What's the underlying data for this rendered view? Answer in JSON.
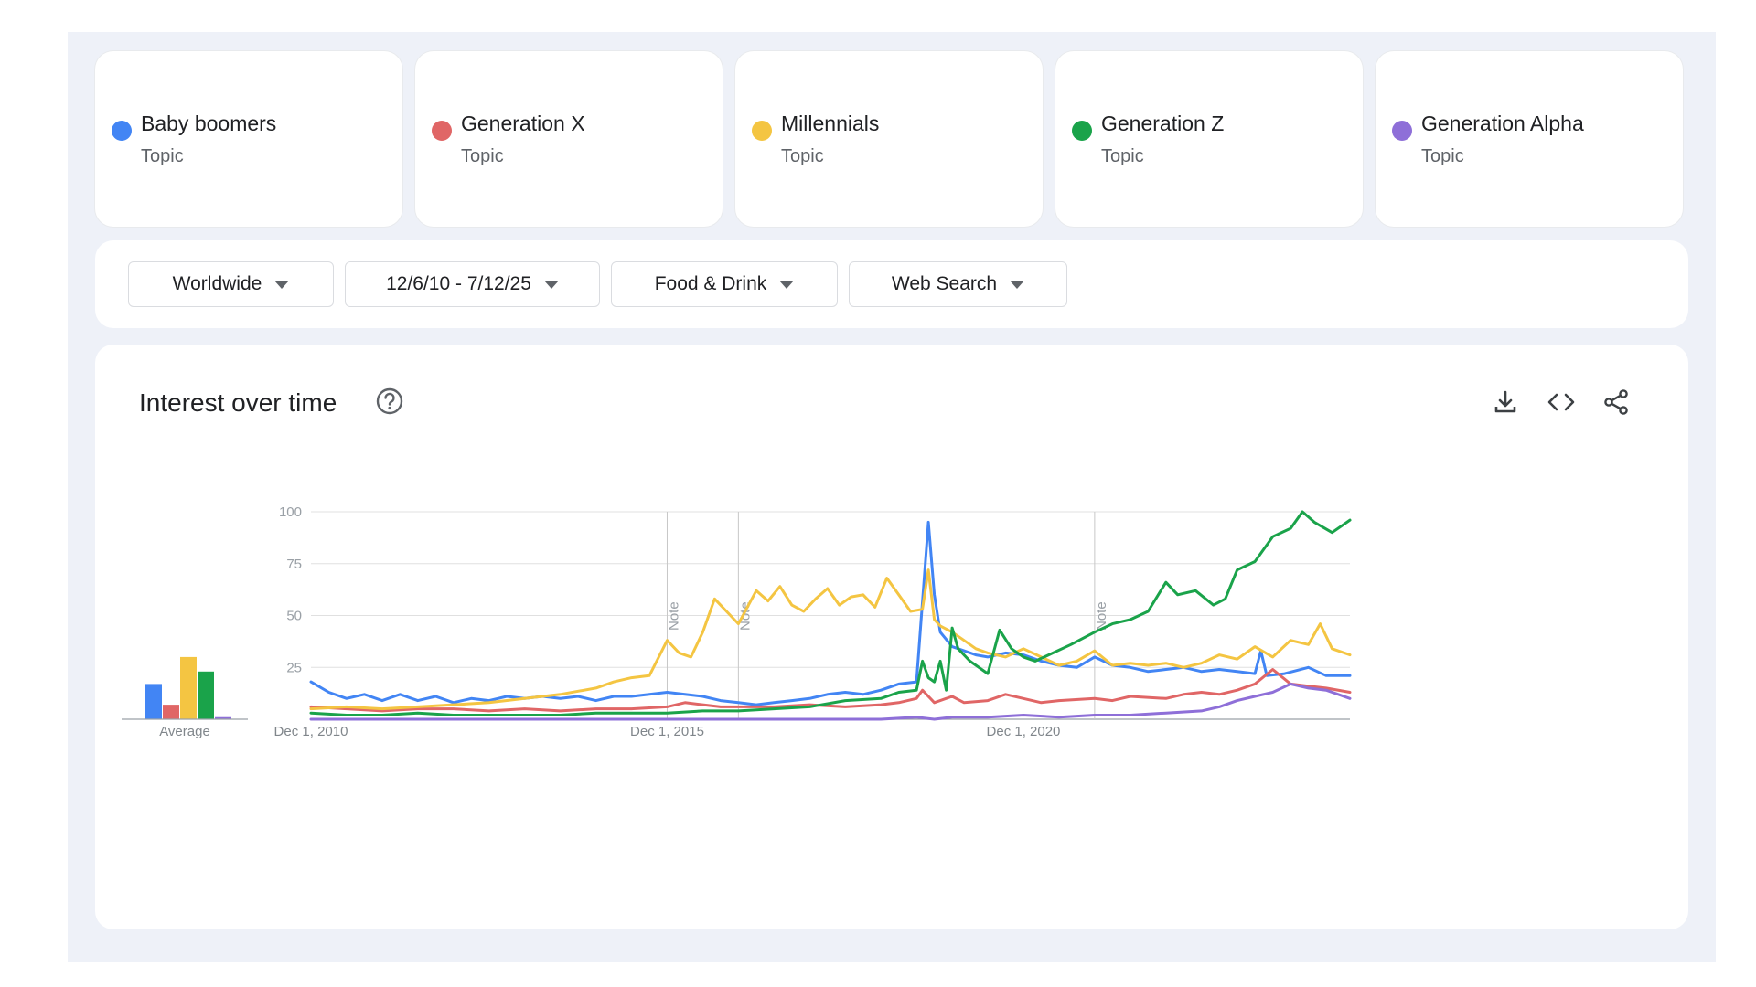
{
  "terms": [
    {
      "name": "Baby boomers",
      "type": "Topic",
      "color": "#4285f4"
    },
    {
      "name": "Generation X",
      "type": "Topic",
      "color": "#e06666"
    },
    {
      "name": "Millennials",
      "type": "Topic",
      "color": "#f4c542"
    },
    {
      "name": "Generation Z",
      "type": "Topic",
      "color": "#1aa34a"
    },
    {
      "name": "Generation Alpha",
      "type": "Topic",
      "color": "#8e6fd8"
    }
  ],
  "filters": {
    "region": "Worldwide",
    "date_range": "12/6/10 - 7/12/25",
    "category": "Food & Drink",
    "search_type": "Web Search"
  },
  "chart_header": {
    "title": "Interest over time",
    "icons": [
      "help-icon",
      "download-icon",
      "embed-icon",
      "share-icon"
    ]
  },
  "chart_data": {
    "type": "line",
    "x_ticks": [
      "Dec 1, 2010",
      "Dec 1, 2015",
      "Dec 1, 2020"
    ],
    "y_ticks": [
      100,
      75,
      50,
      25
    ],
    "ylim": [
      0,
      100
    ],
    "xlim": [
      "2010-12",
      "2025-07"
    ],
    "grid": true,
    "notes": [
      {
        "date": "2015-12",
        "label": "Note"
      },
      {
        "date": "2016-12",
        "label": "Note"
      },
      {
        "date": "2021-12",
        "label": "Note"
      }
    ],
    "average_label": "Average",
    "averages": [
      17,
      7,
      30,
      23,
      1
    ],
    "series": [
      {
        "name": "Baby boomers",
        "color": "#4285f4",
        "points": [
          [
            "2010-12",
            18
          ],
          [
            "2011-03",
            13
          ],
          [
            "2011-06",
            10
          ],
          [
            "2011-09",
            12
          ],
          [
            "2011-12",
            9
          ],
          [
            "2012-03",
            12
          ],
          [
            "2012-06",
            9
          ],
          [
            "2012-09",
            11
          ],
          [
            "2012-12",
            8
          ],
          [
            "2013-03",
            10
          ],
          [
            "2013-06",
            9
          ],
          [
            "2013-09",
            11
          ],
          [
            "2013-12",
            10
          ],
          [
            "2014-03",
            11
          ],
          [
            "2014-06",
            10
          ],
          [
            "2014-09",
            11
          ],
          [
            "2014-12",
            9
          ],
          [
            "2015-03",
            11
          ],
          [
            "2015-06",
            11
          ],
          [
            "2015-09",
            12
          ],
          [
            "2015-12",
            13
          ],
          [
            "2016-03",
            12
          ],
          [
            "2016-06",
            11
          ],
          [
            "2016-09",
            9
          ],
          [
            "2016-12",
            8
          ],
          [
            "2017-03",
            7
          ],
          [
            "2017-06",
            8
          ],
          [
            "2017-09",
            9
          ],
          [
            "2017-12",
            10
          ],
          [
            "2018-03",
            12
          ],
          [
            "2018-06",
            13
          ],
          [
            "2018-09",
            12
          ],
          [
            "2018-12",
            14
          ],
          [
            "2019-03",
            17
          ],
          [
            "2019-06",
            18
          ],
          [
            "2019-08",
            95
          ],
          [
            "2019-09",
            60
          ],
          [
            "2019-10",
            42
          ],
          [
            "2019-12",
            35
          ],
          [
            "2020-02",
            33
          ],
          [
            "2020-04",
            31
          ],
          [
            "2020-06",
            30
          ],
          [
            "2020-09",
            32
          ],
          [
            "2020-12",
            31
          ],
          [
            "2021-03",
            28
          ],
          [
            "2021-06",
            26
          ],
          [
            "2021-09",
            25
          ],
          [
            "2021-12",
            30
          ],
          [
            "2022-03",
            26
          ],
          [
            "2022-06",
            25
          ],
          [
            "2022-09",
            23
          ],
          [
            "2022-12",
            24
          ],
          [
            "2023-03",
            25
          ],
          [
            "2023-06",
            23
          ],
          [
            "2023-09",
            24
          ],
          [
            "2023-12",
            23
          ],
          [
            "2024-03",
            22
          ],
          [
            "2024-04",
            33
          ],
          [
            "2024-05",
            21
          ],
          [
            "2024-08",
            22
          ],
          [
            "2024-12",
            25
          ],
          [
            "2025-03",
            21
          ],
          [
            "2025-07",
            21
          ]
        ]
      },
      {
        "name": "Generation X",
        "color": "#e06666",
        "points": [
          [
            "2010-12",
            6
          ],
          [
            "2011-06",
            5
          ],
          [
            "2011-12",
            4
          ],
          [
            "2012-06",
            5
          ],
          [
            "2012-12",
            5
          ],
          [
            "2013-06",
            4
          ],
          [
            "2013-12",
            5
          ],
          [
            "2014-06",
            4
          ],
          [
            "2014-12",
            5
          ],
          [
            "2015-06",
            5
          ],
          [
            "2015-12",
            6
          ],
          [
            "2016-03",
            8
          ],
          [
            "2016-06",
            7
          ],
          [
            "2016-09",
            6
          ],
          [
            "2016-12",
            6
          ],
          [
            "2017-06",
            6
          ],
          [
            "2017-12",
            7
          ],
          [
            "2018-06",
            6
          ],
          [
            "2018-12",
            7
          ],
          [
            "2019-03",
            8
          ],
          [
            "2019-06",
            10
          ],
          [
            "2019-07",
            14
          ],
          [
            "2019-09",
            8
          ],
          [
            "2019-12",
            11
          ],
          [
            "2020-02",
            8
          ],
          [
            "2020-06",
            9
          ],
          [
            "2020-09",
            12
          ],
          [
            "2020-12",
            10
          ],
          [
            "2021-03",
            8
          ],
          [
            "2021-06",
            9
          ],
          [
            "2021-12",
            10
          ],
          [
            "2022-03",
            9
          ],
          [
            "2022-06",
            11
          ],
          [
            "2022-12",
            10
          ],
          [
            "2023-03",
            12
          ],
          [
            "2023-06",
            13
          ],
          [
            "2023-09",
            12
          ],
          [
            "2023-12",
            14
          ],
          [
            "2024-03",
            17
          ],
          [
            "2024-06",
            24
          ],
          [
            "2024-09",
            17
          ],
          [
            "2024-12",
            16
          ],
          [
            "2025-03",
            15
          ],
          [
            "2025-07",
            13
          ]
        ]
      },
      {
        "name": "Millennials",
        "color": "#f4c542",
        "points": [
          [
            "2010-12",
            5
          ],
          [
            "2011-06",
            6
          ],
          [
            "2011-12",
            5
          ],
          [
            "2012-06",
            6
          ],
          [
            "2012-12",
            7
          ],
          [
            "2013-06",
            8
          ],
          [
            "2013-12",
            10
          ],
          [
            "2014-06",
            12
          ],
          [
            "2014-12",
            15
          ],
          [
            "2015-03",
            18
          ],
          [
            "2015-06",
            20
          ],
          [
            "2015-09",
            21
          ],
          [
            "2015-12",
            38
          ],
          [
            "2016-02",
            32
          ],
          [
            "2016-04",
            30
          ],
          [
            "2016-06",
            42
          ],
          [
            "2016-08",
            58
          ],
          [
            "2016-10",
            52
          ],
          [
            "2016-12",
            46
          ],
          [
            "2017-03",
            62
          ],
          [
            "2017-05",
            57
          ],
          [
            "2017-07",
            64
          ],
          [
            "2017-09",
            55
          ],
          [
            "2017-11",
            52
          ],
          [
            "2018-01",
            58
          ],
          [
            "2018-03",
            63
          ],
          [
            "2018-05",
            55
          ],
          [
            "2018-07",
            59
          ],
          [
            "2018-09",
            60
          ],
          [
            "2018-11",
            54
          ],
          [
            "2019-01",
            68
          ],
          [
            "2019-03",
            60
          ],
          [
            "2019-05",
            52
          ],
          [
            "2019-07",
            53
          ],
          [
            "2019-08",
            72
          ],
          [
            "2019-09",
            48
          ],
          [
            "2019-10",
            45
          ],
          [
            "2019-12",
            42
          ],
          [
            "2020-02",
            38
          ],
          [
            "2020-04",
            34
          ],
          [
            "2020-06",
            32
          ],
          [
            "2020-09",
            30
          ],
          [
            "2020-12",
            34
          ],
          [
            "2021-03",
            30
          ],
          [
            "2021-06",
            26
          ],
          [
            "2021-09",
            28
          ],
          [
            "2021-12",
            33
          ],
          [
            "2022-03",
            26
          ],
          [
            "2022-06",
            27
          ],
          [
            "2022-09",
            26
          ],
          [
            "2022-12",
            27
          ],
          [
            "2023-03",
            25
          ],
          [
            "2023-06",
            27
          ],
          [
            "2023-09",
            31
          ],
          [
            "2023-12",
            29
          ],
          [
            "2024-03",
            35
          ],
          [
            "2024-06",
            30
          ],
          [
            "2024-09",
            38
          ],
          [
            "2024-12",
            36
          ],
          [
            "2025-02",
            46
          ],
          [
            "2025-04",
            34
          ],
          [
            "2025-07",
            31
          ]
        ]
      },
      {
        "name": "Generation Z",
        "color": "#1aa34a",
        "points": [
          [
            "2010-12",
            3
          ],
          [
            "2011-06",
            2
          ],
          [
            "2011-12",
            2
          ],
          [
            "2012-06",
            3
          ],
          [
            "2012-12",
            2
          ],
          [
            "2013-06",
            2
          ],
          [
            "2013-12",
            2
          ],
          [
            "2014-06",
            2
          ],
          [
            "2014-12",
            3
          ],
          [
            "2015-06",
            3
          ],
          [
            "2015-12",
            3
          ],
          [
            "2016-06",
            4
          ],
          [
            "2016-12",
            4
          ],
          [
            "2017-06",
            5
          ],
          [
            "2017-12",
            6
          ],
          [
            "2018-06",
            9
          ],
          [
            "2018-12",
            10
          ],
          [
            "2019-03",
            13
          ],
          [
            "2019-06",
            14
          ],
          [
            "2019-07",
            28
          ],
          [
            "2019-08",
            20
          ],
          [
            "2019-09",
            18
          ],
          [
            "2019-10",
            28
          ],
          [
            "2019-11",
            14
          ],
          [
            "2019-12",
            44
          ],
          [
            "2020-01",
            34
          ],
          [
            "2020-03",
            28
          ],
          [
            "2020-06",
            22
          ],
          [
            "2020-08",
            43
          ],
          [
            "2020-10",
            34
          ],
          [
            "2020-12",
            30
          ],
          [
            "2021-02",
            28
          ],
          [
            "2021-05",
            32
          ],
          [
            "2021-08",
            36
          ],
          [
            "2021-12",
            42
          ],
          [
            "2022-03",
            46
          ],
          [
            "2022-06",
            48
          ],
          [
            "2022-09",
            52
          ],
          [
            "2022-12",
            66
          ],
          [
            "2023-02",
            60
          ],
          [
            "2023-05",
            62
          ],
          [
            "2023-08",
            55
          ],
          [
            "2023-10",
            58
          ],
          [
            "2023-12",
            72
          ],
          [
            "2024-03",
            76
          ],
          [
            "2024-06",
            88
          ],
          [
            "2024-09",
            92
          ],
          [
            "2024-11",
            100
          ],
          [
            "2025-01",
            95
          ],
          [
            "2025-04",
            90
          ],
          [
            "2025-07",
            96
          ]
        ]
      },
      {
        "name": "Generation Alpha",
        "color": "#8e6fd8",
        "points": [
          [
            "2010-12",
            0
          ],
          [
            "2012-12",
            0
          ],
          [
            "2014-12",
            0
          ],
          [
            "2016-12",
            0
          ],
          [
            "2018-12",
            0
          ],
          [
            "2019-06",
            1
          ],
          [
            "2019-09",
            0
          ],
          [
            "2019-12",
            1
          ],
          [
            "2020-06",
            1
          ],
          [
            "2020-12",
            2
          ],
          [
            "2021-06",
            1
          ],
          [
            "2021-12",
            2
          ],
          [
            "2022-06",
            2
          ],
          [
            "2022-12",
            3
          ],
          [
            "2023-06",
            4
          ],
          [
            "2023-09",
            6
          ],
          [
            "2023-12",
            9
          ],
          [
            "2024-03",
            11
          ],
          [
            "2024-06",
            13
          ],
          [
            "2024-09",
            17
          ],
          [
            "2024-12",
            15
          ],
          [
            "2025-03",
            14
          ],
          [
            "2025-07",
            10
          ]
        ]
      }
    ]
  }
}
